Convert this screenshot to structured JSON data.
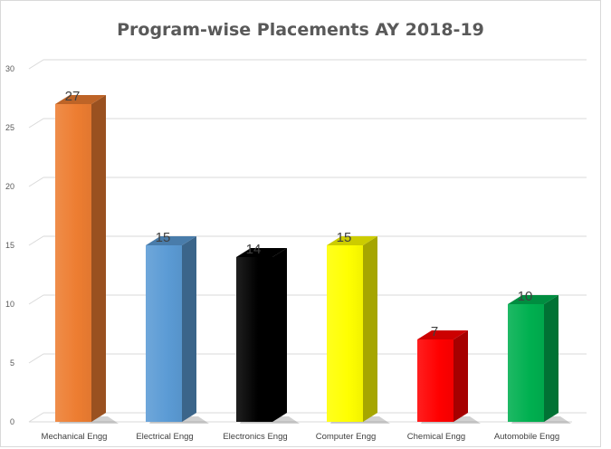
{
  "chart_data": {
    "type": "bar",
    "title": "Program-wise Placements AY 2018-19",
    "categories": [
      "Mechanical Engg",
      "Electrical Engg",
      "Electronics Engg",
      "Computer Engg",
      "Chemical Engg",
      "Automobile Engg"
    ],
    "values": [
      27,
      15,
      14,
      15,
      7,
      10
    ],
    "colors": [
      "#ed7d31",
      "#5b9bd5",
      "#000000",
      "#ffff00",
      "#ff0000",
      "#00b050"
    ],
    "ylim": [
      0,
      30
    ],
    "yticks": [
      "0",
      "5",
      "10",
      "15",
      "20",
      "25",
      "30"
    ],
    "grid": true,
    "three_d": true,
    "xlabel": "",
    "ylabel": ""
  }
}
